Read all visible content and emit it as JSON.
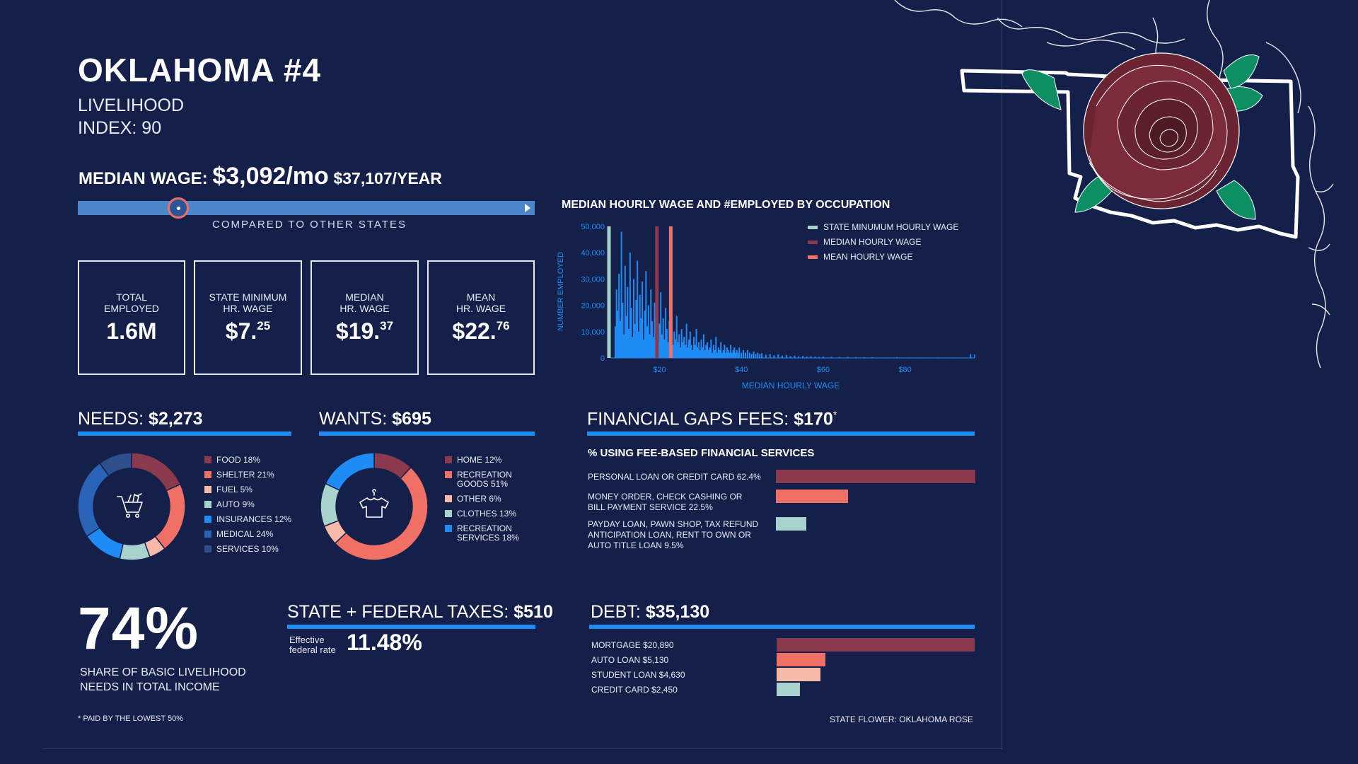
{
  "title": "OKLAHOMA #4",
  "subtitle": {
    "line1": "LIVELIHOOD",
    "line2": "INDEX: 90"
  },
  "median_wage": {
    "label": "MEDIAN WAGE:",
    "monthly": "$3,092/mo",
    "yearly": "$37,107/YEAR",
    "relative_position_pct": 22
  },
  "compared_label": "COMPARED TO OTHER STATES",
  "stats": [
    {
      "label": "TOTAL\nEMPLOYED",
      "value": "1.6M",
      "sup": ""
    },
    {
      "label": "STATE MINIMUM\nHR. WAGE",
      "value": "$7.",
      "sup": "25"
    },
    {
      "label": "MEDIAN\nHR. WAGE",
      "value": "$19.",
      "sup": "37"
    },
    {
      "label": "MEAN\nHR. WAGE",
      "value": "$22.",
      "sup": "76"
    }
  ],
  "colors": {
    "background": "#15204a",
    "blue": "#1f8cf5",
    "red": "#f07065",
    "maroon": "#8a3a4c",
    "teal": "#a8d2cc",
    "salmon_light": "#f7b9a8"
  },
  "needs": {
    "label": "NEEDS:",
    "amount": "$2,273"
  },
  "wants": {
    "label": "WANTS:",
    "amount": "$695"
  },
  "fees": {
    "label": "FINANCIAL GAPS FEES:",
    "amount": "$170",
    "mark": "*",
    "subtitle": "% USING FEE-BASED FINANCIAL SERVICES"
  },
  "taxes": {
    "label": "STATE + FEDERAL TAXES:",
    "amount": "$510",
    "eff_label": "Effective\nfederal rate",
    "eff_value": "11.48%"
  },
  "debt": {
    "label": "DEBT:",
    "amount": "$35,130"
  },
  "share": {
    "value": "74%",
    "label": "SHARE OF BASIC LIVELIHOOD\nNEEDS IN TOTAL INCOME"
  },
  "footnote": "* PAID BY THE LOWEST 50%",
  "flower_note": "STATE FLOWER: OKLAHOMA ROSE",
  "icons": {
    "needs": "shopping-cart-icon",
    "wants": "shirt-icon",
    "flower": "rose-icon",
    "map": "oklahoma-outline-icon"
  },
  "chart_data": [
    {
      "type": "bar",
      "title": "MEDIAN HOURLY WAGE AND #EMPLOYED BY OCCUPATION",
      "xlabel": "MEDIAN HOURLY WAGE",
      "ylabel": "NUMBER EMPLOYED",
      "xlim": [
        8,
        97
      ],
      "ylim": [
        0,
        50000
      ],
      "x_ticks": [
        "$20",
        "$40",
        "$60",
        "$80"
      ],
      "x_tick_values": [
        20,
        40,
        60,
        80
      ],
      "y_ticks": [
        "0",
        "10,000",
        "20,000",
        "30,000",
        "40,000",
        "50,000"
      ],
      "y_tick_values": [
        0,
        10000,
        20000,
        30000,
        40000,
        50000
      ],
      "legend": [
        "STATE MINUMUM HOURLY WAGE",
        "MEDIAN HOURLY WAGE",
        "MEAN HOURLY WAGE"
      ],
      "reference_lines": [
        {
          "name": "STATE MINUMUM HOURLY WAGE",
          "x": 7.25,
          "color": "#a8d2cc"
        },
        {
          "name": "MEDIAN HOURLY WAGE",
          "x": 19.37,
          "color": "#8a3a4c"
        },
        {
          "name": "MEAN HOURLY WAGE",
          "x": 22.76,
          "color": "#f07065"
        }
      ],
      "occupations": [
        [
          9.2,
          12000
        ],
        [
          9.5,
          26000
        ],
        [
          9.8,
          18000
        ],
        [
          10.1,
          32000
        ],
        [
          10.4,
          14000
        ],
        [
          10.7,
          48000
        ],
        [
          11.0,
          21000
        ],
        [
          11.3,
          9000
        ],
        [
          11.6,
          35000
        ],
        [
          11.9,
          16000
        ],
        [
          12.2,
          27000
        ],
        [
          12.5,
          11000
        ],
        [
          12.8,
          40000
        ],
        [
          13.1,
          19000
        ],
        [
          13.4,
          8000
        ],
        [
          13.7,
          30000
        ],
        [
          14.0,
          13000
        ],
        [
          14.3,
          22000
        ],
        [
          14.6,
          37000
        ],
        [
          14.9,
          10000
        ],
        [
          15.2,
          24000
        ],
        [
          15.5,
          15000
        ],
        [
          15.8,
          29000
        ],
        [
          16.1,
          7000
        ],
        [
          16.4,
          18000
        ],
        [
          16.7,
          33000
        ],
        [
          17.0,
          12000
        ],
        [
          17.3,
          20000
        ],
        [
          17.6,
          9000
        ],
        [
          17.9,
          26000
        ],
        [
          18.2,
          14000
        ],
        [
          18.5,
          8000
        ],
        [
          18.8,
          21000
        ],
        [
          19.1,
          11000
        ],
        [
          19.4,
          17000
        ],
        [
          19.7,
          6000
        ],
        [
          20.0,
          13000
        ],
        [
          20.3,
          25000
        ],
        [
          20.6,
          9000
        ],
        [
          20.9,
          15000
        ],
        [
          21.2,
          7000
        ],
        [
          21.5,
          19000
        ],
        [
          21.8,
          11000
        ],
        [
          22.1,
          6000
        ],
        [
          22.4,
          14000
        ],
        [
          22.7,
          8000
        ],
        [
          23.0,
          12000
        ],
        [
          23.3,
          5000
        ],
        [
          23.6,
          10000
        ],
        [
          23.9,
          7000
        ],
        [
          24.2,
          16000
        ],
        [
          24.5,
          6000
        ],
        [
          24.8,
          9000
        ],
        [
          25.1,
          4000
        ],
        [
          25.4,
          11000
        ],
        [
          25.7,
          6000
        ],
        [
          26.0,
          8000
        ],
        [
          26.3,
          5000
        ],
        [
          26.6,
          13000
        ],
        [
          26.9,
          4000
        ],
        [
          27.2,
          7000
        ],
        [
          27.5,
          10000
        ],
        [
          27.8,
          5000
        ],
        [
          28.1,
          3000
        ],
        [
          28.4,
          8000
        ],
        [
          28.7,
          5000
        ],
        [
          29.0,
          11000
        ],
        [
          29.3,
          4000
        ],
        [
          29.6,
          6000
        ],
        [
          29.9,
          3000
        ],
        [
          30.2,
          7000
        ],
        [
          30.5,
          4000
        ],
        [
          30.8,
          9000
        ],
        [
          31.1,
          3000
        ],
        [
          31.4,
          5000
        ],
        [
          31.7,
          6000
        ],
        [
          32.0,
          3000
        ],
        [
          32.3,
          4000
        ],
        [
          32.6,
          7000
        ],
        [
          32.9,
          2000
        ],
        [
          33.2,
          5000
        ],
        [
          33.5,
          3000
        ],
        [
          33.8,
          8000
        ],
        [
          34.1,
          2000
        ],
        [
          34.4,
          4000
        ],
        [
          34.7,
          3000
        ],
        [
          35.0,
          6000
        ],
        [
          35.3,
          2000
        ],
        [
          35.6,
          3000
        ],
        [
          35.9,
          5000
        ],
        [
          36.2,
          2000
        ],
        [
          36.5,
          4000
        ],
        [
          36.8,
          3000
        ],
        [
          37.1,
          2000
        ],
        [
          37.4,
          5000
        ],
        [
          37.7,
          2000
        ],
        [
          38.0,
          3000
        ],
        [
          38.3,
          4000
        ],
        [
          38.6,
          2000
        ],
        [
          38.9,
          3000
        ],
        [
          39.2,
          2000
        ],
        [
          39.5,
          4000
        ],
        [
          40.0,
          2000
        ],
        [
          40.5,
          3000
        ],
        [
          41.0,
          2000
        ],
        [
          41.5,
          3000
        ],
        [
          42.0,
          2000
        ],
        [
          42.5,
          1500
        ],
        [
          43.0,
          2500
        ],
        [
          43.5,
          1500
        ],
        [
          44.0,
          2000
        ],
        [
          44.5,
          1500
        ],
        [
          45.0,
          1800
        ],
        [
          46.0,
          1200
        ],
        [
          47.0,
          1500
        ],
        [
          48.0,
          1000
        ],
        [
          49.0,
          1300
        ],
        [
          50.0,
          900
        ],
        [
          51.0,
          1100
        ],
        [
          52.0,
          700
        ],
        [
          53.0,
          900
        ],
        [
          54.0,
          600
        ],
        [
          55.0,
          800
        ],
        [
          56.0,
          500
        ],
        [
          57.0,
          600
        ],
        [
          58.0,
          500
        ],
        [
          59.0,
          400
        ],
        [
          60.0,
          500
        ],
        [
          62.0,
          400
        ],
        [
          64.0,
          300
        ],
        [
          66.0,
          400
        ],
        [
          68.0,
          300
        ],
        [
          70.0,
          250
        ],
        [
          72.0,
          300
        ],
        [
          75.0,
          200
        ],
        [
          78.0,
          250
        ],
        [
          81.0,
          200
        ],
        [
          84.0,
          150
        ],
        [
          88.0,
          200
        ],
        [
          92.0,
          150
        ],
        [
          96.0,
          1500
        ]
      ]
    },
    {
      "type": "pie",
      "name": "NEEDS",
      "categories": [
        "FOOD",
        "SHELTER",
        "FUEL",
        "AUTO",
        "INSURANCES",
        "MEDICAL",
        "SERVICES"
      ],
      "values": [
        18,
        21,
        5,
        9,
        12,
        24,
        10
      ],
      "legend_labels": [
        "FOOD 18%",
        "SHELTER 21%",
        "FUEL 5%",
        "AUTO 9%",
        "INSURANCES 12%",
        "MEDICAL 24%",
        "SERVICES 10%"
      ],
      "colors": [
        "#8a3a4c",
        "#f07065",
        "#f7b9a8",
        "#a8d2cc",
        "#1f8cf5",
        "#2a64b8",
        "#2e4f8c"
      ]
    },
    {
      "type": "pie",
      "name": "WANTS",
      "categories": [
        "HOME",
        "RECREATION GOODS",
        "OTHER",
        "CLOTHES",
        "RECREATION SERVICES"
      ],
      "values": [
        12,
        51,
        6,
        13,
        18
      ],
      "legend_labels": [
        "HOME 12%",
        "RECREATION\nGOODS 51%",
        "OTHER 6%",
        "CLOTHES 13%",
        "RECREATION\nSERVICES 18%"
      ],
      "colors": [
        "#8a3a4c",
        "#f07065",
        "#f7b9a8",
        "#a8d2cc",
        "#1f8cf5"
      ]
    },
    {
      "type": "bar",
      "name": "FEE-BASED FINANCIAL SERVICES",
      "categories": [
        "PERSONAL LOAN OR CREDIT CARD",
        "MONEY ORDER, CHECK CASHING OR BILL PAYMENT SERVICE",
        "PAYDAY LOAN, PAWN SHOP, TAX REFUND ANTICIPATION LOAN, RENT TO OWN OR AUTO TITLE LOAN"
      ],
      "values": [
        62.4,
        22.5,
        9.5
      ],
      "labels": [
        "PERSONAL LOAN OR CREDIT CARD 62.4%",
        "MONEY ORDER, CHECK CASHING OR\nBILL PAYMENT SERVICE 22.5%",
        "PAYDAY LOAN, PAWN SHOP, TAX REFUND\nANTICIPATION LOAN, RENT TO OWN OR\nAUTO TITLE LOAN 9.5%"
      ],
      "colors": [
        "#8a3a4c",
        "#f07065",
        "#a8d2cc"
      ],
      "xlim": [
        0,
        62.4
      ]
    },
    {
      "type": "bar",
      "name": "DEBT",
      "categories": [
        "MORTGAGE",
        "AUTO LOAN",
        "STUDENT LOAN",
        "CREDIT CARD"
      ],
      "values": [
        20890,
        5130,
        4630,
        2450
      ],
      "labels": [
        "MORTGAGE $20,890",
        "AUTO LOAN $5,130",
        "STUDENT LOAN $4,630",
        "CREDIT CARD $2,450"
      ],
      "colors": [
        "#8a3a4c",
        "#f07065",
        "#f7b9a8",
        "#a8d2cc"
      ],
      "xlim": [
        0,
        20890
      ]
    }
  ]
}
